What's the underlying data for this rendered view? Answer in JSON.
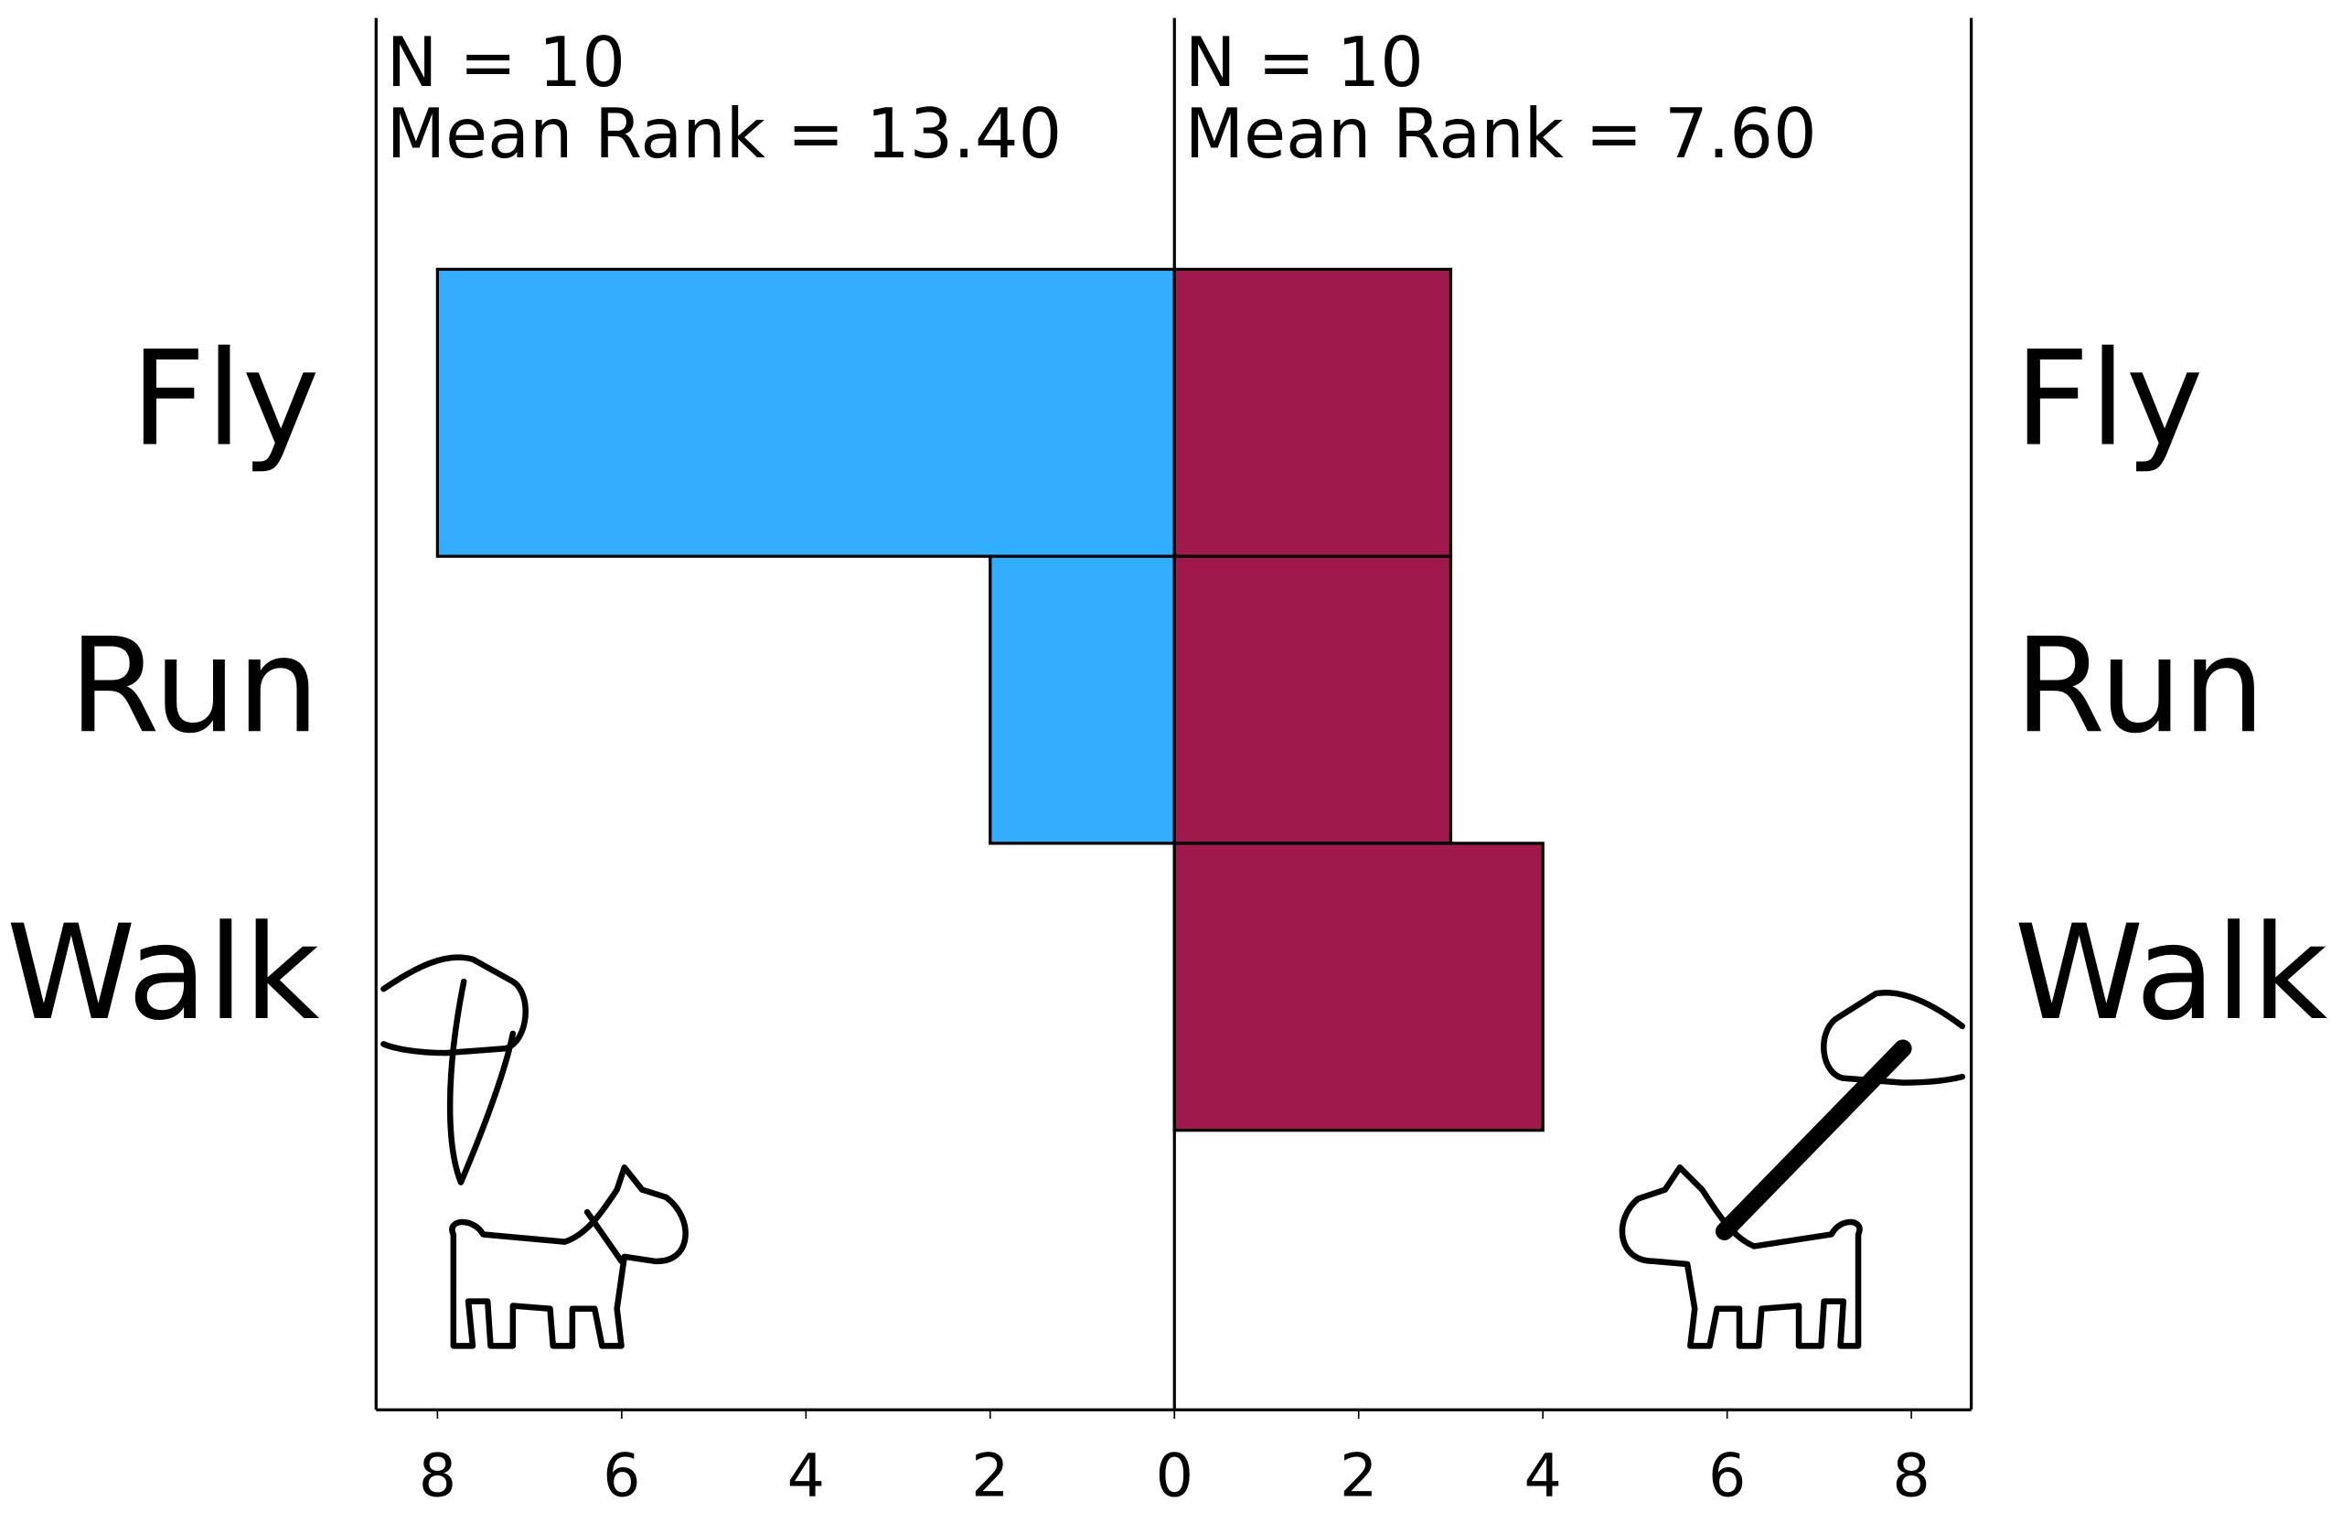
{
  "chart_data": {
    "type": "pyramid",
    "categories": [
      "Fly",
      "Run",
      "Walk"
    ],
    "series": [
      {
        "color": "#33adff",
        "values": [
          8,
          2,
          0
        ],
        "annotations": [
          "N = 10",
          "Mean Rank = 13.40"
        ]
      },
      {
        "color": "#a0194d",
        "values": [
          3,
          3,
          4
        ],
        "annotations": [
          "N = 10",
          "Mean Rank = 7.60"
        ]
      }
    ],
    "xlim": [
      0,
      8.65
    ],
    "xticks": [
      0,
      2,
      4,
      6,
      8
    ]
  }
}
